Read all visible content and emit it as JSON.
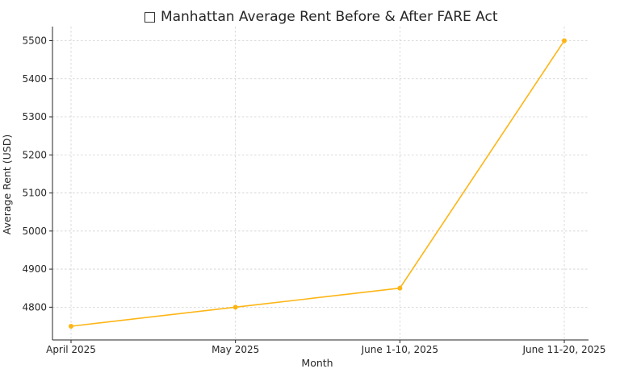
{
  "chart_data": {
    "type": "line",
    "title": "□ Manhattan Average Rent Before & After FARE Act",
    "xlabel": "Month",
    "ylabel": "Average Rent (USD)",
    "categories": [
      "April 2025",
      "May 2025",
      "June 1-10, 2025",
      "June 11-20, 2025"
    ],
    "series": [
      {
        "values": [
          4750,
          4800,
          4850,
          5500
        ]
      }
    ],
    "ylim": [
      4714,
      5537
    ],
    "yticks": [
      4800,
      4900,
      5000,
      5100,
      5200,
      5300,
      5400,
      5500
    ],
    "grid": true,
    "line_color": "#FDB515",
    "marker": "circle"
  }
}
